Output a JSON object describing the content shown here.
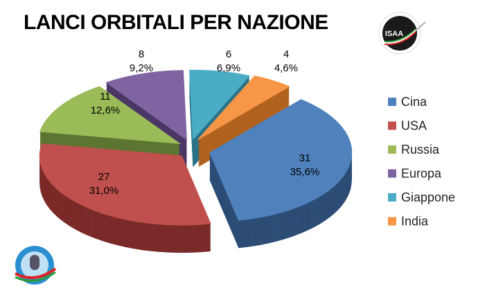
{
  "chart_data": {
    "type": "pie",
    "title": "LANCI ORBITALI PER NAZIONE",
    "categories": [
      "Cina",
      "USA",
      "Russia",
      "Europa",
      "Giappone",
      "India"
    ],
    "values": [
      31,
      27,
      11,
      8,
      6,
      4
    ],
    "percent_labels": [
      "35,6%",
      "31,0%",
      "12,6%",
      "9,2%",
      "6,9%",
      "4,6%"
    ],
    "colors": [
      "#4f81bd",
      "#c0504d",
      "#9bbb59",
      "#8064a2",
      "#4bacc6",
      "#f79646"
    ],
    "side_colors": [
      "#2c4d75",
      "#7a2a28",
      "#5d7530",
      "#4a3765",
      "#2a7388",
      "#b0621f"
    ],
    "legend": "right"
  },
  "logos": {
    "top_right": "ISAA"
  }
}
